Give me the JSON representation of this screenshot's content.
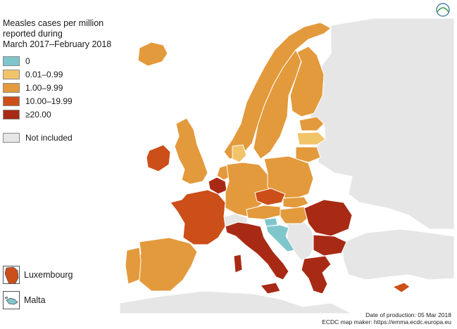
{
  "title": {
    "line1": "Measles cases per million",
    "line2": "reported during",
    "line3": "March 2017–February 2018"
  },
  "legend": [
    {
      "label": "0",
      "color": "#7fc6cc"
    },
    {
      "label": "0.01–0.99",
      "color": "#f2c46a"
    },
    {
      "label": "1.00–9.99",
      "color": "#e39a3c"
    },
    {
      "label": "10.00–19.99",
      "color": "#cc4e18"
    },
    {
      "label": "≥20.00",
      "color": "#a82a14"
    }
  ],
  "not_included": {
    "label": "Not included",
    "color": "#e6e6e6"
  },
  "insets": {
    "luxembourg": "Luxembourg",
    "malta": "Malta"
  },
  "caption": {
    "line1": "Date of production: 05 Mar 2018",
    "line2": "ECDC map maker: https://emma.ecdc.europa.eu"
  },
  "logo": "ecdc",
  "map_colors": {
    "sea": "#ffffff",
    "not_included": "#e6e6e6",
    "border": "#ffffff"
  }
}
